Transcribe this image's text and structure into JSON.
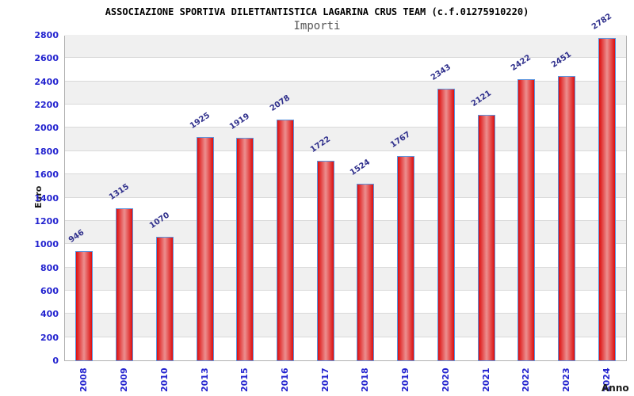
{
  "chart_data": {
    "type": "bar",
    "title": "ASSOCIAZIONE SPORTIVA DILETTANTISTICA LAGARINA CRUS TEAM (c.f.01275910220)",
    "subtitle": "Importi",
    "xlabel": "Anno",
    "ylabel": "Euro",
    "categories": [
      "2008",
      "2009",
      "2010",
      "2013",
      "2015",
      "2016",
      "2017",
      "2018",
      "2019",
      "2020",
      "2021",
      "2022",
      "2023",
      "2024"
    ],
    "values": [
      946,
      1315,
      1070,
      1925,
      1919,
      2078,
      1722,
      1524,
      1767,
      2343,
      2121,
      2422,
      2451,
      2782
    ],
    "ylim": [
      0,
      2800
    ],
    "ytick_step": 200,
    "grid": "horizontal-bands",
    "legend": "none",
    "colors": {
      "bar_edge_red": "#dd0e0e",
      "bar_center_highlight": "#ec8f8f",
      "bar_border_blue": "#5b94dd",
      "axis_tick_blue": "#2323cf",
      "value_label_navy": "#30308c",
      "band_gray": "#f0f0f0",
      "band_white": "#ffffff",
      "gridline_gray": "#d9d9d9",
      "title_black": "#000000",
      "subtitle_gray": "#545454"
    }
  }
}
